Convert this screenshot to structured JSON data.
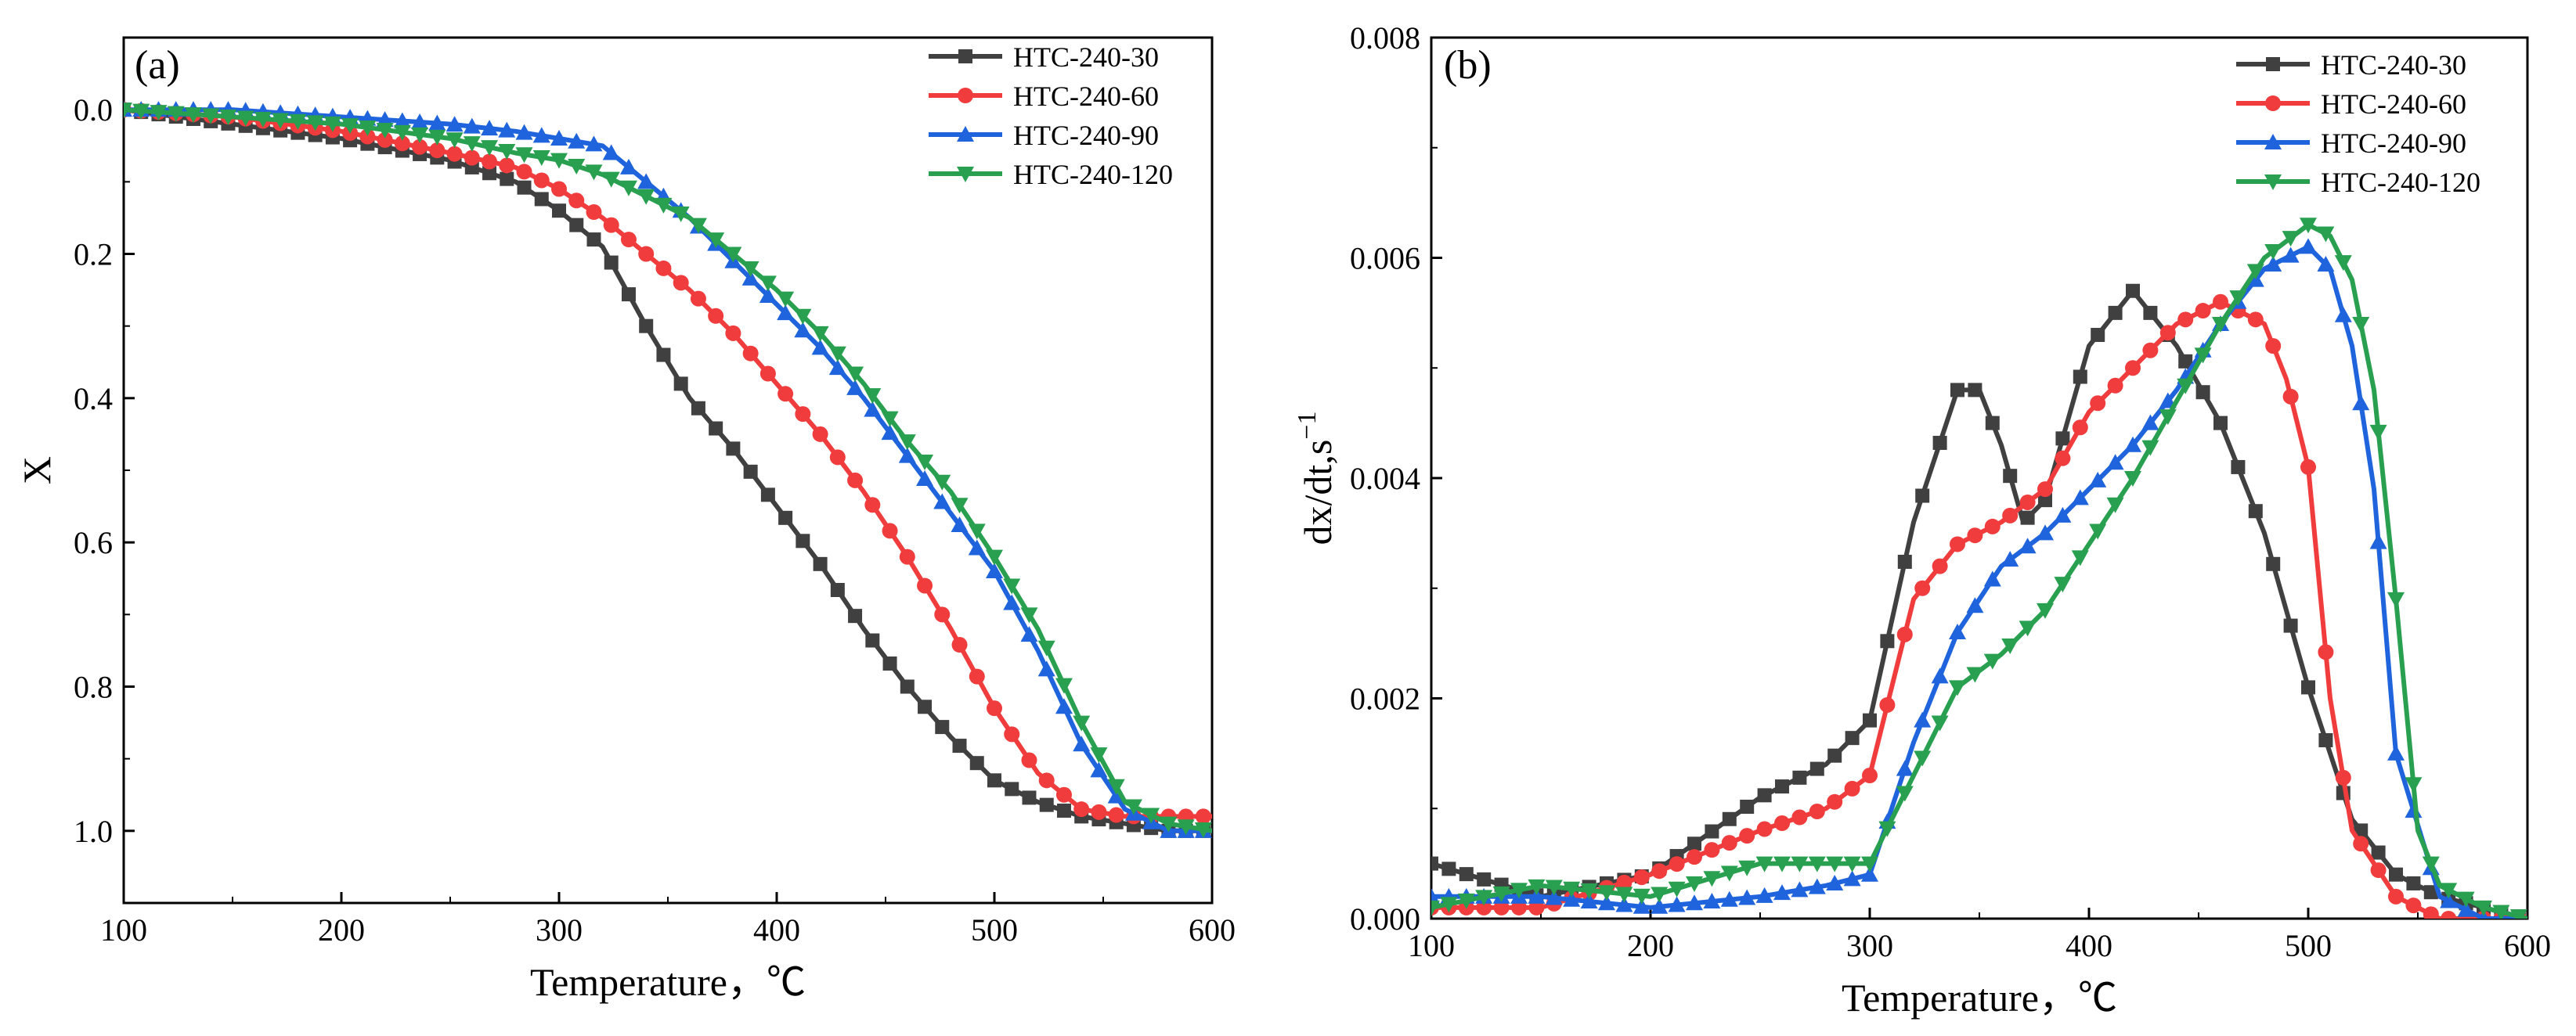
{
  "chart_data": [
    {
      "type": "line",
      "panel_label": "(a)",
      "title": "",
      "xlabel": "Temperature，℃",
      "ylabel": "X",
      "xlim": [
        100,
        600
      ],
      "ylim": [
        1.1,
        -0.1
      ],
      "y_inverted": true,
      "xticks": [
        "100",
        "200",
        "300",
        "400",
        "500",
        "600"
      ],
      "yticks": [
        "0.0",
        "0.2",
        "0.4",
        "0.6",
        "0.8",
        "1.0"
      ],
      "legend_position": "top-right",
      "series": [
        {
          "name": "HTC-240-30",
          "color": "#404040",
          "marker": "square",
          "x": [
            100,
            150,
            200,
            250,
            280,
            300,
            320,
            340,
            360,
            380,
            400,
            420,
            440,
            460,
            480,
            500,
            520,
            540,
            560,
            580,
            600
          ],
          "y": [
            0,
            0.02,
            0.04,
            0.07,
            0.1,
            0.14,
            0.19,
            0.3,
            0.4,
            0.47,
            0.55,
            0.63,
            0.72,
            0.8,
            0.87,
            0.93,
            0.96,
            0.98,
            0.99,
            1.0,
            1.0
          ]
        },
        {
          "name": "HTC-240-60",
          "color": "#f03c3c",
          "marker": "circle",
          "x": [
            100,
            150,
            200,
            250,
            280,
            300,
            320,
            340,
            360,
            380,
            400,
            420,
            440,
            460,
            480,
            500,
            520,
            540,
            560,
            580,
            600
          ],
          "y": [
            0,
            0.01,
            0.03,
            0.06,
            0.08,
            0.11,
            0.15,
            0.2,
            0.25,
            0.31,
            0.38,
            0.45,
            0.53,
            0.62,
            0.72,
            0.83,
            0.92,
            0.97,
            0.98,
            0.98,
            0.98
          ]
        },
        {
          "name": "HTC-240-90",
          "color": "#1f64dc",
          "marker": "triangle-up",
          "x": [
            100,
            150,
            200,
            250,
            280,
            300,
            320,
            340,
            360,
            380,
            400,
            420,
            440,
            460,
            480,
            500,
            520,
            540,
            560,
            580,
            600
          ],
          "y": [
            0,
            0.0,
            0.01,
            0.02,
            0.03,
            0.04,
            0.05,
            0.1,
            0.15,
            0.21,
            0.27,
            0.33,
            0.4,
            0.48,
            0.56,
            0.64,
            0.75,
            0.88,
            0.97,
            1.0,
            1.0
          ]
        },
        {
          "name": "HTC-240-120",
          "color": "#28a050",
          "marker": "triangle-down",
          "x": [
            100,
            150,
            200,
            250,
            280,
            300,
            320,
            340,
            360,
            380,
            400,
            420,
            440,
            460,
            480,
            500,
            520,
            540,
            560,
            580,
            600
          ],
          "y": [
            0,
            0.01,
            0.02,
            0.04,
            0.06,
            0.07,
            0.09,
            0.12,
            0.15,
            0.2,
            0.25,
            0.31,
            0.38,
            0.46,
            0.53,
            0.62,
            0.72,
            0.85,
            0.96,
            0.99,
            1.0
          ]
        }
      ]
    },
    {
      "type": "line",
      "panel_label": "(b)",
      "title": "",
      "xlabel": "Temperature，℃",
      "ylabel": "dx/dt,s",
      "ylabel_superscript": "−1",
      "xlim": [
        100,
        600
      ],
      "ylim": [
        0,
        0.008
      ],
      "xticks": [
        "100",
        "200",
        "300",
        "400",
        "500",
        "600"
      ],
      "yticks": [
        "0.000",
        "0.002",
        "0.004",
        "0.006",
        "0.008"
      ],
      "legend_position": "top-right",
      "series": [
        {
          "name": "HTC-240-30",
          "color": "#404040",
          "marker": "square",
          "x": [
            100,
            150,
            200,
            250,
            280,
            300,
            320,
            340,
            350,
            360,
            370,
            380,
            400,
            420,
            440,
            460,
            480,
            500,
            520,
            540,
            560,
            580,
            600
          ],
          "y": [
            0.0005,
            0.0002,
            0.0004,
            0.0011,
            0.0014,
            0.0018,
            0.0036,
            0.0048,
            0.0048,
            0.0043,
            0.0036,
            0.0038,
            0.0052,
            0.0057,
            0.0052,
            0.0045,
            0.0035,
            0.0021,
            0.0009,
            0.0004,
            0.0002,
            0.0001,
            0.0
          ]
        },
        {
          "name": "HTC-240-60",
          "color": "#f03c3c",
          "marker": "circle",
          "x": [
            100,
            150,
            200,
            250,
            280,
            300,
            320,
            340,
            360,
            380,
            400,
            420,
            440,
            460,
            480,
            490,
            500,
            510,
            520,
            540,
            560,
            580,
            600
          ],
          "y": [
            0.0001,
            0.0001,
            0.0004,
            0.0008,
            0.001,
            0.0013,
            0.0029,
            0.0034,
            0.0036,
            0.0039,
            0.0046,
            0.005,
            0.0054,
            0.0056,
            0.0054,
            0.0049,
            0.0041,
            0.002,
            0.0008,
            0.0002,
            0.0,
            0.0,
            0.0
          ]
        },
        {
          "name": "HTC-240-90",
          "color": "#1f64dc",
          "marker": "triangle-up",
          "x": [
            100,
            150,
            200,
            250,
            280,
            300,
            320,
            340,
            360,
            380,
            400,
            420,
            440,
            460,
            480,
            500,
            510,
            520,
            530,
            540,
            560,
            580,
            600
          ],
          "y": [
            0.0002,
            0.0002,
            0.0001,
            0.0002,
            0.0003,
            0.0004,
            0.0016,
            0.0026,
            0.0032,
            0.0035,
            0.0039,
            0.0043,
            0.0048,
            0.0054,
            0.0059,
            0.0061,
            0.0059,
            0.0052,
            0.0039,
            0.0015,
            0.0002,
            0.0,
            0.0
          ]
        },
        {
          "name": "HTC-240-120",
          "color": "#28a050",
          "marker": "triangle-down",
          "x": [
            100,
            150,
            200,
            250,
            280,
            300,
            320,
            340,
            360,
            380,
            400,
            420,
            440,
            460,
            480,
            500,
            510,
            520,
            530,
            540,
            550,
            560,
            580,
            600
          ],
          "y": [
            0.0001,
            0.0003,
            0.0002,
            0.0005,
            0.0005,
            0.0005,
            0.0013,
            0.0021,
            0.0024,
            0.0028,
            0.0034,
            0.004,
            0.0047,
            0.0054,
            0.006,
            0.0063,
            0.0062,
            0.0058,
            0.0048,
            0.0029,
            0.0008,
            0.0003,
            0.0001,
            0.0
          ]
        }
      ]
    }
  ]
}
